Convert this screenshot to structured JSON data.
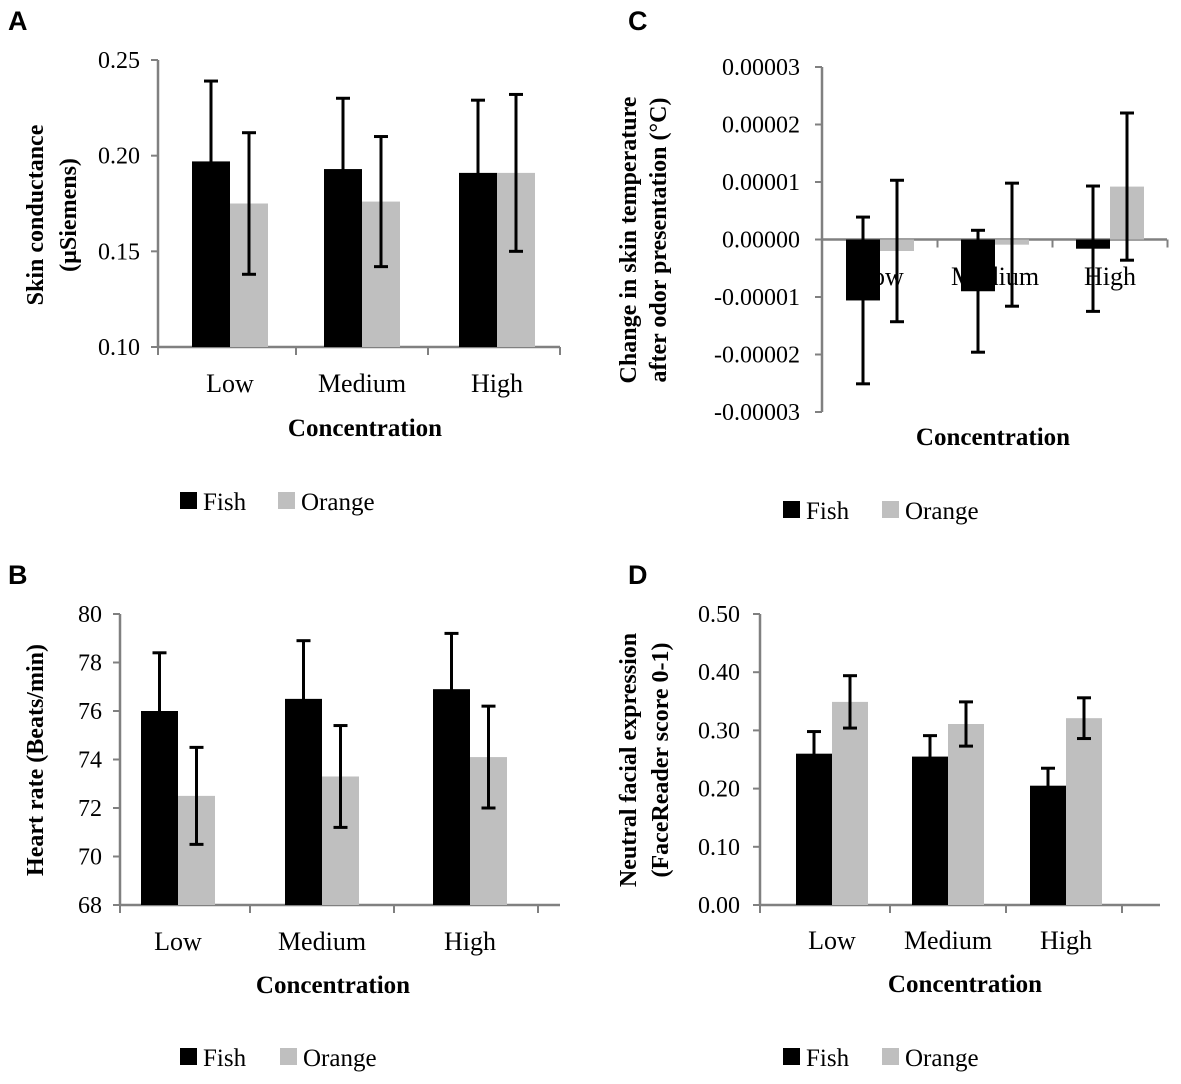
{
  "colors": {
    "fish": "#000000",
    "orange": "#bfbfbf",
    "axis": "#808080"
  },
  "chart_data": [
    {
      "panel": "A",
      "type": "bar",
      "ylabel": [
        "Skin conductance",
        "(µSiemens)"
      ],
      "xlabel": "Concentration",
      "categories": [
        "Low",
        "Medium",
        "High"
      ],
      "ylim": [
        0.1,
        0.25
      ],
      "yticks": [
        0.1,
        0.15,
        0.2,
        0.25
      ],
      "ytick_labels": [
        "0.10",
        "0.15",
        "0.20",
        "0.25"
      ],
      "legend": [
        "Fish",
        "Orange"
      ],
      "legend_position": "bottom",
      "series": [
        {
          "name": "Fish",
          "values": [
            0.197,
            0.193,
            0.191
          ],
          "error": [
            0.042,
            0.037,
            0.038
          ]
        },
        {
          "name": "Orange",
          "values": [
            0.175,
            0.176,
            0.191
          ],
          "error": [
            0.037,
            0.034,
            0.041
          ]
        }
      ]
    },
    {
      "panel": "B",
      "type": "bar",
      "ylabel": [
        "Heart rate (Beats/min)"
      ],
      "xlabel": "Concentration",
      "categories": [
        "Low",
        "Medium",
        "High"
      ],
      "ylim": [
        68,
        80
      ],
      "yticks": [
        68,
        70,
        72,
        74,
        76,
        78,
        80
      ],
      "ytick_labels": [
        "68",
        "70",
        "72",
        "74",
        "76",
        "78",
        "80"
      ],
      "legend": [
        "Fish",
        "Orange"
      ],
      "legend_position": "bottom",
      "series": [
        {
          "name": "Fish",
          "values": [
            76.0,
            76.5,
            76.9
          ],
          "error": [
            2.4,
            2.4,
            2.3
          ]
        },
        {
          "name": "Orange",
          "values": [
            72.5,
            73.3,
            74.1
          ],
          "error": [
            2.0,
            2.1,
            2.1
          ]
        }
      ]
    },
    {
      "panel": "C",
      "type": "bar",
      "ylabel": [
        "Change in skin temperature",
        "after odor presentation  (°C)"
      ],
      "xlabel": "Concentration",
      "categories": [
        "Low",
        "Medium",
        "High"
      ],
      "ylim": [
        -3e-05,
        3e-05
      ],
      "yticks": [
        -3e-05,
        -2e-05,
        -1e-05,
        0,
        1e-05,
        2e-05,
        3e-05
      ],
      "ytick_labels": [
        "-0.00003",
        "-0.00002",
        "-0.00001",
        "0.00000",
        "0.00001",
        "0.00002",
        "0.00003"
      ],
      "legend": [
        "Fish",
        "Orange"
      ],
      "legend_position": "bottom",
      "series": [
        {
          "name": "Fish",
          "values": [
            -1.06e-05,
            -9e-06,
            -1.6e-06
          ],
          "error": [
            1.45e-05,
            1.06e-05,
            1.09e-05
          ]
        },
        {
          "name": "Orange",
          "values": [
            -2e-06,
            -9e-07,
            9.2e-06
          ],
          "error": [
            1.23e-05,
            1.07e-05,
            1.28e-05
          ]
        }
      ]
    },
    {
      "panel": "D",
      "type": "bar",
      "ylabel": [
        "Neutral facial expression",
        "(FaceReader score 0-1)"
      ],
      "xlabel": "Concentration",
      "categories": [
        "Low",
        "Medium",
        "High"
      ],
      "ylim": [
        0,
        0.5
      ],
      "yticks": [
        0,
        0.1,
        0.2,
        0.3,
        0.4,
        0.5
      ],
      "ytick_labels": [
        "0.00",
        "0.10",
        "0.20",
        "0.30",
        "0.40",
        "0.50"
      ],
      "legend": [
        "Fish",
        "Orange"
      ],
      "legend_position": "bottom",
      "series": [
        {
          "name": "Fish",
          "values": [
            0.26,
            0.255,
            0.205
          ],
          "error": [
            0.038,
            0.036,
            0.03
          ]
        },
        {
          "name": "Orange",
          "values": [
            0.349,
            0.311,
            0.321
          ],
          "error": [
            0.045,
            0.038,
            0.035
          ]
        }
      ]
    }
  ]
}
